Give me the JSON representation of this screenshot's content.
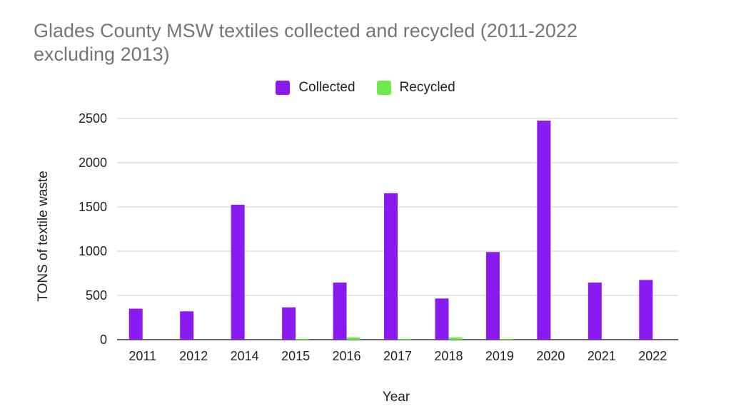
{
  "chart_data": {
    "type": "bar",
    "title": "Glades County MSW textiles collected and recycled (2011-2022 excluding 2013)",
    "xlabel": "Year",
    "ylabel": "TONS of textile waste",
    "categories": [
      "2011",
      "2012",
      "2014",
      "2015",
      "2016",
      "2017",
      "2018",
      "2019",
      "2020",
      "2021",
      "2022"
    ],
    "series": [
      {
        "name": "Collected",
        "color": "#8a1bf0",
        "values": [
          350,
          320,
          1525,
          365,
          645,
          1655,
          465,
          990,
          2475,
          645,
          675
        ]
      },
      {
        "name": "Recycled",
        "color": "#6fea4a",
        "values": [
          0,
          0,
          0,
          10,
          25,
          10,
          25,
          10,
          0,
          0,
          0
        ]
      }
    ],
    "yticks": [
      "0",
      "500",
      "1000",
      "1500",
      "2000",
      "2500"
    ],
    "ylim": [
      0,
      2500
    ],
    "grid": true,
    "legend_position": "top-center"
  }
}
